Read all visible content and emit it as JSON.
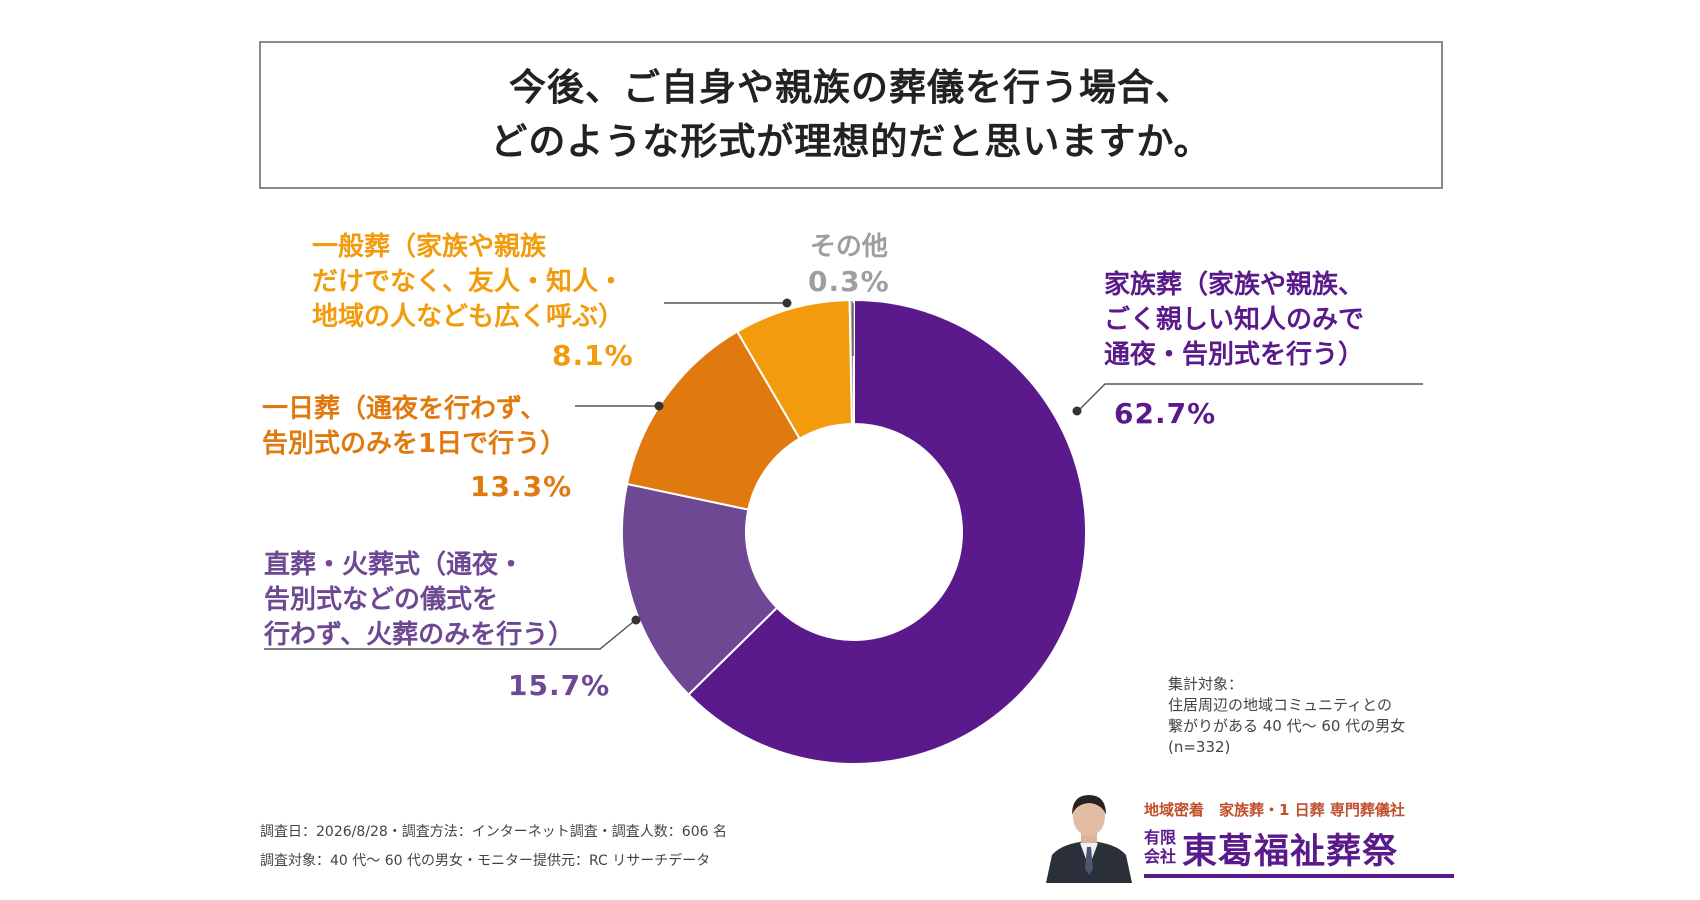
{
  "title": {
    "line1": "今後、ご自身や親族の葬儀を行う場合、",
    "line2": "どのような形式が理想的だと思いますか。"
  },
  "chart_data": {
    "type": "pie",
    "style": "donut",
    "categories": [
      "家族葬（家族や親族、ごく親しい知人のみで通夜・告別式を行う）",
      "直葬・火葬式（通夜・告別式などの儀式を行わず、火葬のみを行う）",
      "一日葬（通夜を行わず、告別式のみを1日で行う）",
      "一般葬（家族や親族だけでなく、友人・知人・地域の人なども広く呼ぶ）",
      "その他"
    ],
    "values": [
      62.7,
      15.7,
      13.3,
      8.1,
      0.3
    ],
    "value_labels": [
      "62.7%",
      "15.7%",
      "13.3%",
      "8.1%",
      "0.3%"
    ],
    "colors": [
      "#5b1a8b",
      "#6f4893",
      "#e07a0e",
      "#f29b0c",
      "#9e9e9e"
    ],
    "start_angle_deg": 0,
    "direction": "clockwise"
  },
  "labels": {
    "family": {
      "lines": [
        "家族葬（家族や親族、",
        "ごく親しい知人のみで",
        "通夜・告別式を行う）"
      ],
      "pct": "62.7%",
      "color": "#5b1a8b"
    },
    "direct": {
      "lines": [
        "直葬・火葬式（通夜・",
        "告別式などの儀式を",
        "行わず、火葬のみを行う）"
      ],
      "pct": "15.7%",
      "color": "#6f4893"
    },
    "oneday": {
      "lines": [
        "一日葬（通夜を行わず、",
        "告別式のみを1日で行う）"
      ],
      "pct": "13.3%",
      "color": "#e07a0e"
    },
    "general": {
      "lines": [
        "一般葬（家族や親族",
        "だけでなく、友人・知人・",
        "地域の人なども広く呼ぶ）"
      ],
      "pct": "8.1%",
      "color": "#f29b0c"
    },
    "other": {
      "lines": [
        "その他"
      ],
      "pct": "0.3%",
      "color": "#9e9e9e"
    }
  },
  "sample_note": {
    "line1": "集計対象：",
    "line2": "住居周辺の地域コミュニティとの",
    "line3": "繋がりがある 40 代～ 60 代の男女",
    "line4": "(n=332)"
  },
  "footer": {
    "line1": "調査日：2026/8/28・調査方法：インターネット調査・調査人数：606 名",
    "line2": "調査対象：40 代～ 60 代の男女・モニター提供元：RC リサーチデータ"
  },
  "brand": {
    "tagline": "地域密着　家族葬・1 日葬 専門葬儀社",
    "company_type": "有限会社",
    "company_name": "東葛福祉葬祭",
    "accent_color": "#5a1a8b",
    "tagline_color": "#c0502c"
  }
}
